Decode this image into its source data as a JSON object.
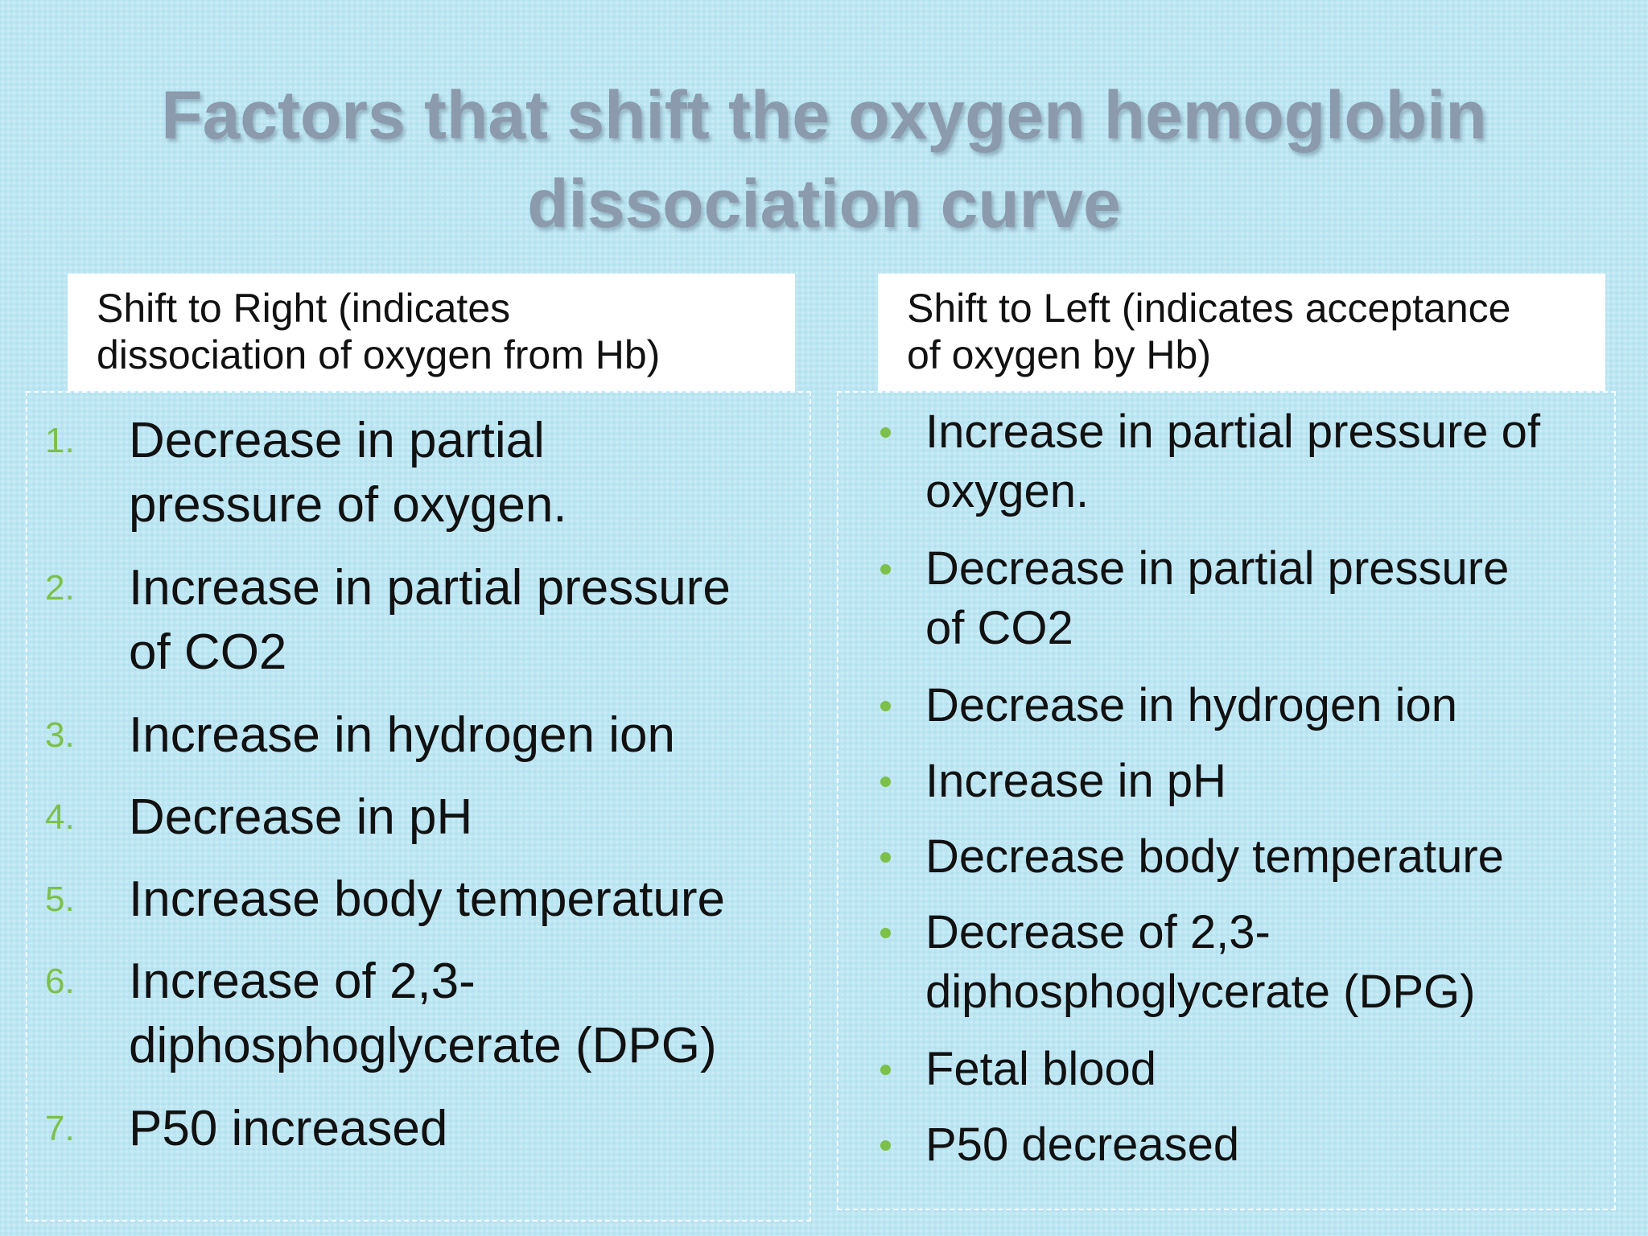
{
  "slide": {
    "title_line1": "Factors that shift the oxygen hemoglobin",
    "title_line2": "dissociation curve",
    "right_shift": {
      "header_line1": "Shift to Right (indicates",
      "header_line2": "dissociation of oxygen from Hb)",
      "items": [
        {
          "number": "1.",
          "line1": "Decrease in partial",
          "line2": "pressure of oxygen."
        },
        {
          "number": "2.",
          "line1": "Increase in partial pressure",
          "line2": "of CO2"
        },
        {
          "number": "3.",
          "line1": "Increase in hydrogen ion",
          "line2": ""
        },
        {
          "number": "4.",
          "line1": "Decrease in pH",
          "line2": ""
        },
        {
          "number": "5.",
          "line1": "Increase body temperature",
          "line2": ""
        },
        {
          "number": "6.",
          "line1": "Increase of 2,3-",
          "line2": "diphosphoglycerate (DPG)"
        },
        {
          "number": "7.",
          "line1": "P50  increased",
          "line2": ""
        }
      ]
    },
    "left_shift": {
      "header_line1": "Shift to Left (indicates acceptance",
      "header_line2": "of oxygen by Hb)",
      "items": [
        {
          "line1": "Increase in partial pressure of",
          "line2": "oxygen."
        },
        {
          "line1": "Decrease in partial pressure",
          "line2": "of CO2"
        },
        {
          "line1": "Decrease in hydrogen ion",
          "line2": ""
        },
        {
          "line1": "Increase in pH",
          "line2": ""
        },
        {
          "line1": "Decrease body temperature",
          "line2": ""
        },
        {
          "line1": "Decrease of 2,3-",
          "line2": "diphosphoglycerate (DPG)"
        },
        {
          "line1": "Fetal blood",
          "line2": ""
        },
        {
          "line1": "P50 decreased",
          "line2": ""
        }
      ]
    },
    "colors": {
      "background": "#bde6f3",
      "title": "#8b9aac",
      "marker": "#7cc04b",
      "text": "#111111"
    }
  }
}
